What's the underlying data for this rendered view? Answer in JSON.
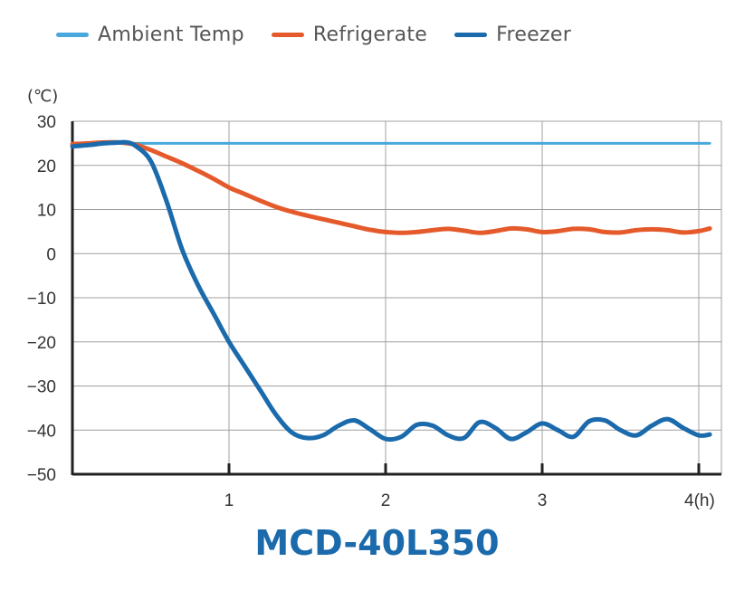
{
  "colors": {
    "ambient": "#4aa8dc",
    "refrigerate": "#e55a2b",
    "freezer": "#1a6aac",
    "model": "#1a6aac",
    "grid": "#a0a0a0",
    "axis": "#222222"
  },
  "legend": [
    {
      "label": "Ambient Temp",
      "color": "#4aa8dc"
    },
    {
      "label": "Refrigerate",
      "color": "#e55a2b"
    },
    {
      "label": "Freezer",
      "color": "#1a6aac"
    }
  ],
  "unit_label": "(℃)",
  "model_name": "MCD-40L350",
  "chart_data": {
    "type": "line",
    "ylabel": "(℃)",
    "xlabel": "",
    "ylim": [
      -50,
      30
    ],
    "xlim": [
      0,
      4.07
    ],
    "yticks": [
      30,
      20,
      10,
      0,
      -10,
      -20,
      -30,
      -40,
      -50
    ],
    "ytick_labels": [
      "30",
      "20",
      "10",
      "0",
      "−10",
      "−20",
      "−30",
      "−40",
      "−50"
    ],
    "xticks": [
      1,
      2,
      3,
      4
    ],
    "xtick_labels": [
      "1",
      "2",
      "3",
      "4(h)"
    ],
    "grid": true,
    "legend_position": "top",
    "series": [
      {
        "name": "Ambient Temp",
        "color": "#4aa8dc",
        "x": [
          0,
          4.07
        ],
        "y": [
          25,
          25
        ]
      },
      {
        "name": "Refrigerate",
        "color": "#e55a2b",
        "x": [
          0,
          0.1,
          0.2,
          0.3,
          0.4,
          0.5,
          0.6,
          0.7,
          0.8,
          0.9,
          1.0,
          1.1,
          1.2,
          1.3,
          1.4,
          1.5,
          1.6,
          1.7,
          1.8,
          1.9,
          2.0,
          2.1,
          2.2,
          2.3,
          2.4,
          2.5,
          2.6,
          2.7,
          2.8,
          2.9,
          3.0,
          3.1,
          3.2,
          3.3,
          3.4,
          3.5,
          3.6,
          3.7,
          3.8,
          3.9,
          4.0,
          4.07
        ],
        "y": [
          24.8,
          25,
          25.2,
          25.2,
          24.7,
          23.5,
          22,
          20.5,
          18.8,
          17,
          15,
          13.5,
          12,
          10.6,
          9.5,
          8.6,
          7.8,
          7,
          6.2,
          5.4,
          4.9,
          4.7,
          4.9,
          5.3,
          5.6,
          5.2,
          4.7,
          5.1,
          5.7,
          5.5,
          4.9,
          5.1,
          5.6,
          5.5,
          4.9,
          4.8,
          5.3,
          5.5,
          5.3,
          4.8,
          5.1,
          5.7
        ]
      },
      {
        "name": "Freezer",
        "color": "#1a6aac",
        "x": [
          0,
          0.1,
          0.2,
          0.3,
          0.35,
          0.4,
          0.5,
          0.6,
          0.7,
          0.8,
          0.9,
          1.0,
          1.1,
          1.2,
          1.3,
          1.4,
          1.5,
          1.6,
          1.7,
          1.8,
          1.9,
          2.0,
          2.1,
          2.2,
          2.3,
          2.4,
          2.5,
          2.6,
          2.7,
          2.8,
          2.9,
          3.0,
          3.1,
          3.2,
          3.3,
          3.4,
          3.5,
          3.6,
          3.7,
          3.8,
          3.9,
          4.0,
          4.07
        ],
        "y": [
          24.3,
          24.6,
          25,
          25.2,
          25.2,
          24.5,
          21,
          12,
          1,
          -7,
          -13.5,
          -20,
          -25.5,
          -31,
          -36.5,
          -40.5,
          -41.8,
          -41.2,
          -39,
          -37.8,
          -39.8,
          -42,
          -41.5,
          -38.8,
          -39,
          -41.2,
          -41.8,
          -38.2,
          -39.5,
          -42,
          -40.5,
          -38.5,
          -40,
          -41.5,
          -38,
          -37.8,
          -40,
          -41.2,
          -39,
          -37.5,
          -39.5,
          -41.2,
          -41
        ]
      }
    ]
  }
}
